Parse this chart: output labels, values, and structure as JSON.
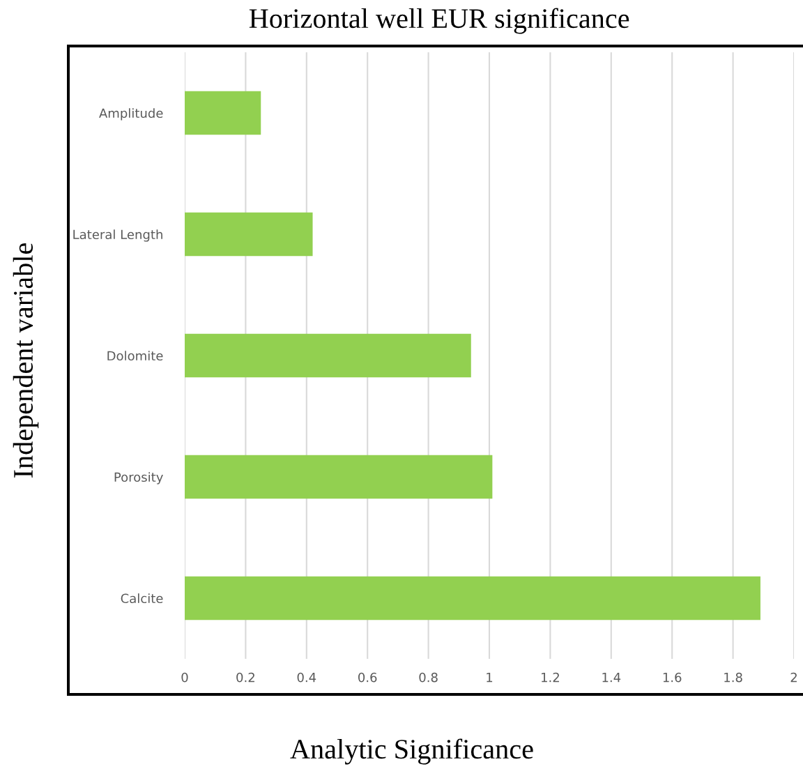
{
  "chart_data": {
    "type": "bar",
    "orientation": "horizontal",
    "title": "Horizontal well EUR significance",
    "xlabel": "Analytic Significance",
    "ylabel": "Independent variable",
    "categories": [
      "Amplitude",
      "Lateral Length",
      "Dolomite",
      "Porosity",
      "Calcite"
    ],
    "values": [
      0.25,
      0.42,
      0.94,
      1.01,
      1.89
    ],
    "color": "#92d050",
    "xlim": [
      0,
      2
    ],
    "xticks": [
      0,
      0.2,
      0.4,
      0.6,
      0.8,
      1,
      1.2,
      1.4,
      1.6,
      1.8,
      2
    ],
    "grid": "x",
    "legend": false
  }
}
